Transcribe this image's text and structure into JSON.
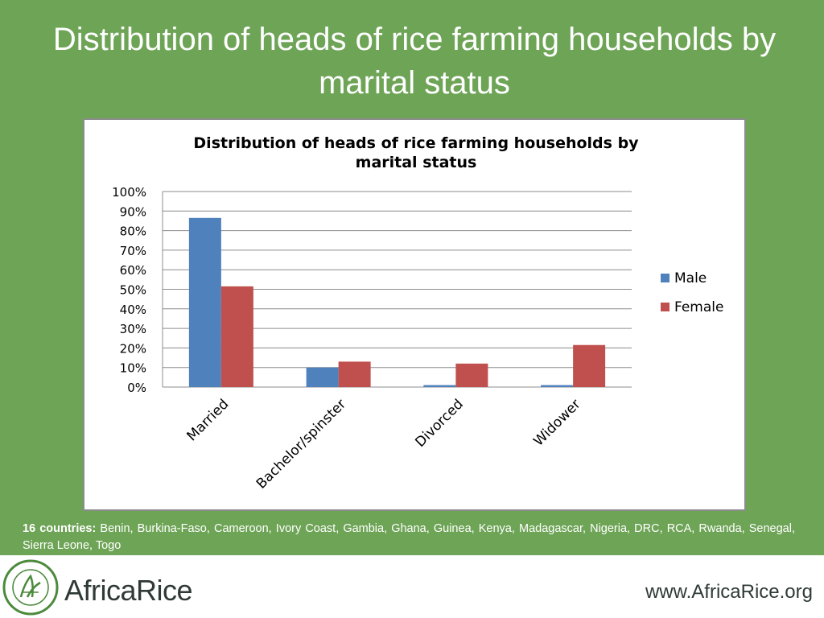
{
  "slide": {
    "title": "Distribution of heads of rice farming households by marital status",
    "footnote_label": "16 countries:",
    "footnote_text": " Benin, Burkina-Faso, Cameroon, Ivory Coast, Gambia, Ghana, Guinea, Kenya, Madagascar, Nigeria, DRC, RCA, Rwanda, Senegal, Sierra Leone, Togo",
    "logo_text": "AfricaRice",
    "logo_seal_text": "Africa Rice Center · Centre du riz pour l'Afrique",
    "website": "www.AfricaRice.org",
    "colors": {
      "background": "#6ea456",
      "male": "#4f81bd",
      "female": "#c0504d"
    }
  },
  "chart_data": {
    "type": "bar",
    "title": "Distribution of heads of rice farming households by marital status",
    "categories": [
      "Married",
      "Bachelor/spinster",
      "Divorced",
      "Widower"
    ],
    "series": [
      {
        "name": "Male",
        "values": [
          86.5,
          10,
          1,
          1
        ],
        "color": "#4f81bd"
      },
      {
        "name": "Female",
        "values": [
          51.5,
          13,
          12,
          21.5
        ],
        "color": "#c0504d"
      }
    ],
    "xlabel": "",
    "ylabel": "",
    "ylim": [
      0,
      100
    ],
    "yticks": [
      "0%",
      "10%",
      "20%",
      "30%",
      "40%",
      "50%",
      "60%",
      "70%",
      "80%",
      "90%",
      "100%"
    ],
    "grid": true,
    "legend": "right"
  }
}
